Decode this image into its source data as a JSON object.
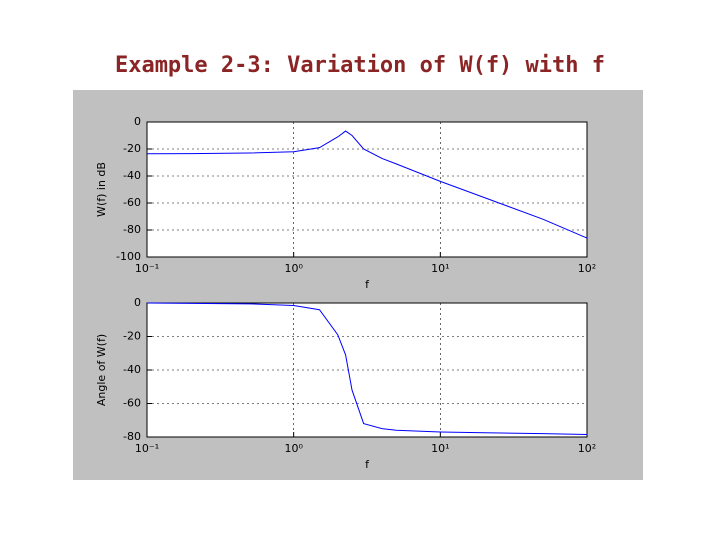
{
  "title": "Example 2-3: Variation of W(f) with f",
  "chart_data": [
    {
      "type": "line",
      "xlabel": "f",
      "ylabel": "W(f) in dB",
      "xscale": "log",
      "grid": true,
      "xlim": [
        0.1,
        100
      ],
      "xticks": [
        {
          "value": 0.1,
          "label": "10⁻¹"
        },
        {
          "value": 1,
          "label": "10⁰"
        },
        {
          "value": 10,
          "label": "10¹"
        },
        {
          "value": 100,
          "label": "10²"
        }
      ],
      "ylim": [
        -100,
        0
      ],
      "yticks": [
        0,
        -20,
        -40,
        -60,
        -80,
        -100
      ],
      "x": [
        0.1,
        0.2,
        0.5,
        1,
        1.5,
        2,
        2.26,
        2.5,
        3,
        4,
        5,
        10,
        20,
        50,
        100
      ],
      "series": [
        {
          "color": "#0000ff",
          "values": [
            -23.5,
            -23.4,
            -23,
            -22,
            -19,
            -11,
            -6.7,
            -10,
            -20,
            -27,
            -31,
            -44,
            -56,
            -72,
            -86
          ]
        }
      ]
    },
    {
      "type": "line",
      "xlabel": "f",
      "ylabel": "Angle of W(f)",
      "xscale": "log",
      "grid": true,
      "xlim": [
        0.1,
        100
      ],
      "xticks": [
        {
          "value": 0.1,
          "label": "10⁻¹"
        },
        {
          "value": 1,
          "label": "10⁰"
        },
        {
          "value": 10,
          "label": "10¹"
        },
        {
          "value": 100,
          "label": "10²"
        }
      ],
      "ylim": [
        -80,
        0
      ],
      "yticks": [
        0,
        -20,
        -40,
        -60,
        -80
      ],
      "x": [
        0.1,
        0.5,
        1,
        1.5,
        2,
        2.26,
        2.5,
        3,
        4,
        5,
        10,
        20,
        50,
        100
      ],
      "series": [
        {
          "color": "#0000ff",
          "values": [
            0,
            -0.5,
            -1.5,
            -4,
            -19,
            -31,
            -52,
            -72,
            -75,
            -76,
            -77,
            -77.5,
            -78,
            -78.5
          ]
        }
      ]
    }
  ]
}
